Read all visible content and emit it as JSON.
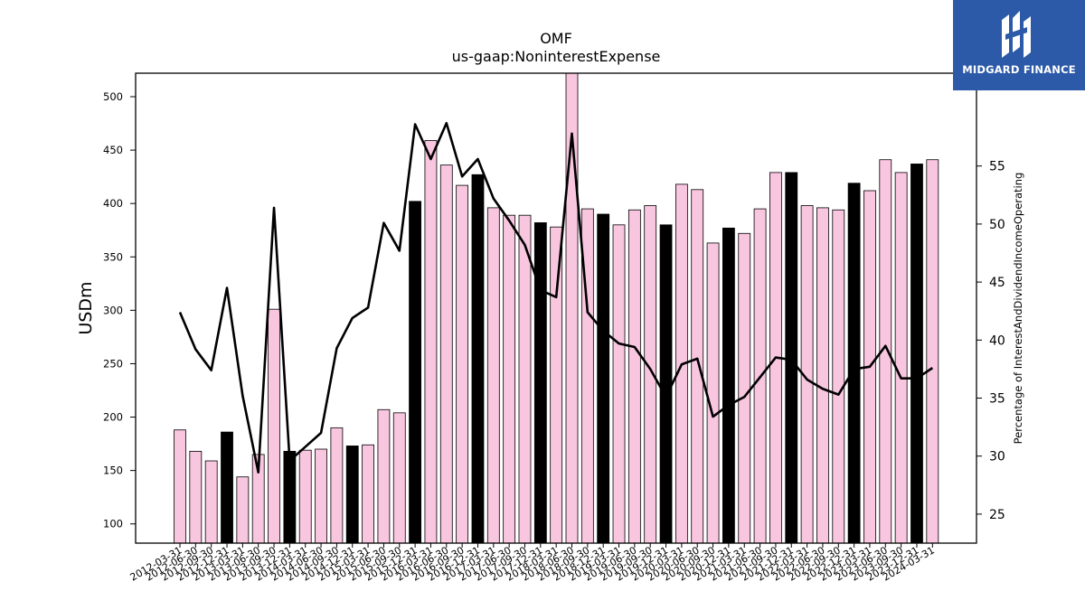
{
  "chart_data": {
    "type": "bar",
    "title": "OMF",
    "subtitle": "us-gaap:NoninterestExpense",
    "ylabel": "USDm",
    "y2label": "Percentage of InterestAndDividendIncomeOperating",
    "ylim": [
      82,
      522
    ],
    "y2lim": [
      22.5,
      63
    ],
    "yticks": [
      100,
      150,
      200,
      250,
      300,
      350,
      400,
      450,
      500
    ],
    "y2ticks": [
      25,
      30,
      35,
      40,
      45,
      50,
      55
    ],
    "grid": false,
    "colors": {
      "bar": "#f9c6e0",
      "bar_highlight": "#000000",
      "line": "#000000",
      "edge": "#000000"
    },
    "categories": [
      "2012-03-31",
      "2012-06-30",
      "2012-09-30",
      "2012-12-31",
      "2013-03-31",
      "2013-06-30",
      "2013-09-30",
      "2013-12-31",
      "2014-03-31",
      "2014-06-30",
      "2014-09-30",
      "2014-12-31",
      "2015-03-31",
      "2015-06-30",
      "2015-09-30",
      "2015-12-31",
      "2016-03-31",
      "2016-06-30",
      "2016-09-30",
      "2016-12-31",
      "2017-03-31",
      "2017-06-30",
      "2017-09-30",
      "2017-12-31",
      "2018-03-31",
      "2018-06-30",
      "2018-09-30",
      "2018-12-31",
      "2019-03-31",
      "2019-06-30",
      "2019-09-30",
      "2019-12-31",
      "2020-03-31",
      "2020-06-30",
      "2020-09-30",
      "2020-12-31",
      "2021-03-31",
      "2021-06-30",
      "2021-09-30",
      "2021-12-31",
      "2022-03-31",
      "2022-06-30",
      "2022-09-30",
      "2022-12-31",
      "2023-03-31",
      "2023-06-30",
      "2023-09-30",
      "2023-12-31",
      "2024-03-31"
    ],
    "series": [
      {
        "kind": "bar",
        "axis": "left",
        "values": [
          188,
          168,
          159,
          186,
          144,
          165,
          301,
          168,
          169,
          170,
          190,
          173,
          174,
          207,
          204,
          402,
          459,
          436,
          417,
          427,
          396,
          389,
          389,
          382,
          378,
          527,
          395,
          390,
          380,
          394,
          398,
          380,
          418,
          413,
          363,
          377,
          372,
          395,
          429,
          429,
          398,
          396,
          394,
          419,
          412,
          441,
          429,
          437,
          441
        ],
        "highlight": [
          false,
          false,
          false,
          true,
          false,
          false,
          false,
          true,
          false,
          false,
          false,
          true,
          false,
          false,
          false,
          true,
          false,
          false,
          false,
          true,
          false,
          false,
          false,
          true,
          false,
          false,
          false,
          true,
          false,
          false,
          false,
          true,
          false,
          false,
          false,
          true,
          false,
          false,
          false,
          true,
          false,
          false,
          false,
          true,
          false,
          false,
          false,
          true,
          false
        ]
      },
      {
        "kind": "line",
        "axis": "right",
        "values": [
          42.4,
          39.2,
          37.4,
          44.5,
          35.2,
          28.6,
          51.4,
          29.6,
          30.8,
          32.0,
          39.3,
          41.9,
          42.8,
          50.1,
          47.7,
          58.6,
          55.6,
          58.7,
          54.1,
          55.6,
          52.2,
          50.3,
          48.2,
          44.3,
          43.7,
          57.8,
          42.4,
          40.8,
          39.7,
          39.4,
          37.5,
          35.1,
          37.9,
          38.4,
          33.4,
          34.4,
          35.1,
          36.8,
          38.5,
          38.3,
          36.6,
          35.8,
          35.3,
          37.5,
          37.7,
          39.5,
          36.7,
          36.7,
          37.6
        ]
      }
    ]
  },
  "logo": {
    "text": "MIDGARD FINANCE"
  }
}
